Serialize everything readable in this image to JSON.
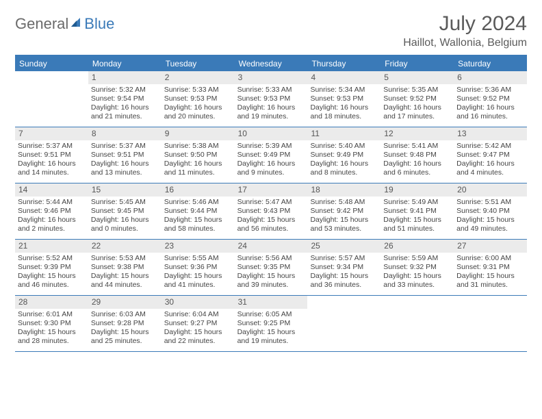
{
  "logo": {
    "general": "General",
    "blue": "Blue"
  },
  "title": "July 2024",
  "location": "Haillot, Wallonia, Belgium",
  "colors": {
    "accent": "#3a7ab8",
    "header_bg": "#3a7ab8",
    "daynum_bg": "#ebebeb",
    "text": "#444444",
    "title_text": "#5a5a5a"
  },
  "weekdays": [
    "Sunday",
    "Monday",
    "Tuesday",
    "Wednesday",
    "Thursday",
    "Friday",
    "Saturday"
  ],
  "weeks": [
    [
      null,
      {
        "n": "1",
        "sr": "5:32 AM",
        "ss": "9:54 PM",
        "dl": "16 hours and 21 minutes."
      },
      {
        "n": "2",
        "sr": "5:33 AM",
        "ss": "9:53 PM",
        "dl": "16 hours and 20 minutes."
      },
      {
        "n": "3",
        "sr": "5:33 AM",
        "ss": "9:53 PM",
        "dl": "16 hours and 19 minutes."
      },
      {
        "n": "4",
        "sr": "5:34 AM",
        "ss": "9:53 PM",
        "dl": "16 hours and 18 minutes."
      },
      {
        "n": "5",
        "sr": "5:35 AM",
        "ss": "9:52 PM",
        "dl": "16 hours and 17 minutes."
      },
      {
        "n": "6",
        "sr": "5:36 AM",
        "ss": "9:52 PM",
        "dl": "16 hours and 16 minutes."
      }
    ],
    [
      {
        "n": "7",
        "sr": "5:37 AM",
        "ss": "9:51 PM",
        "dl": "16 hours and 14 minutes."
      },
      {
        "n": "8",
        "sr": "5:37 AM",
        "ss": "9:51 PM",
        "dl": "16 hours and 13 minutes."
      },
      {
        "n": "9",
        "sr": "5:38 AM",
        "ss": "9:50 PM",
        "dl": "16 hours and 11 minutes."
      },
      {
        "n": "10",
        "sr": "5:39 AM",
        "ss": "9:49 PM",
        "dl": "16 hours and 9 minutes."
      },
      {
        "n": "11",
        "sr": "5:40 AM",
        "ss": "9:49 PM",
        "dl": "16 hours and 8 minutes."
      },
      {
        "n": "12",
        "sr": "5:41 AM",
        "ss": "9:48 PM",
        "dl": "16 hours and 6 minutes."
      },
      {
        "n": "13",
        "sr": "5:42 AM",
        "ss": "9:47 PM",
        "dl": "16 hours and 4 minutes."
      }
    ],
    [
      {
        "n": "14",
        "sr": "5:44 AM",
        "ss": "9:46 PM",
        "dl": "16 hours and 2 minutes."
      },
      {
        "n": "15",
        "sr": "5:45 AM",
        "ss": "9:45 PM",
        "dl": "16 hours and 0 minutes."
      },
      {
        "n": "16",
        "sr": "5:46 AM",
        "ss": "9:44 PM",
        "dl": "15 hours and 58 minutes."
      },
      {
        "n": "17",
        "sr": "5:47 AM",
        "ss": "9:43 PM",
        "dl": "15 hours and 56 minutes."
      },
      {
        "n": "18",
        "sr": "5:48 AM",
        "ss": "9:42 PM",
        "dl": "15 hours and 53 minutes."
      },
      {
        "n": "19",
        "sr": "5:49 AM",
        "ss": "9:41 PM",
        "dl": "15 hours and 51 minutes."
      },
      {
        "n": "20",
        "sr": "5:51 AM",
        "ss": "9:40 PM",
        "dl": "15 hours and 49 minutes."
      }
    ],
    [
      {
        "n": "21",
        "sr": "5:52 AM",
        "ss": "9:39 PM",
        "dl": "15 hours and 46 minutes."
      },
      {
        "n": "22",
        "sr": "5:53 AM",
        "ss": "9:38 PM",
        "dl": "15 hours and 44 minutes."
      },
      {
        "n": "23",
        "sr": "5:55 AM",
        "ss": "9:36 PM",
        "dl": "15 hours and 41 minutes."
      },
      {
        "n": "24",
        "sr": "5:56 AM",
        "ss": "9:35 PM",
        "dl": "15 hours and 39 minutes."
      },
      {
        "n": "25",
        "sr": "5:57 AM",
        "ss": "9:34 PM",
        "dl": "15 hours and 36 minutes."
      },
      {
        "n": "26",
        "sr": "5:59 AM",
        "ss": "9:32 PM",
        "dl": "15 hours and 33 minutes."
      },
      {
        "n": "27",
        "sr": "6:00 AM",
        "ss": "9:31 PM",
        "dl": "15 hours and 31 minutes."
      }
    ],
    [
      {
        "n": "28",
        "sr": "6:01 AM",
        "ss": "9:30 PM",
        "dl": "15 hours and 28 minutes."
      },
      {
        "n": "29",
        "sr": "6:03 AM",
        "ss": "9:28 PM",
        "dl": "15 hours and 25 minutes."
      },
      {
        "n": "30",
        "sr": "6:04 AM",
        "ss": "9:27 PM",
        "dl": "15 hours and 22 minutes."
      },
      {
        "n": "31",
        "sr": "6:05 AM",
        "ss": "9:25 PM",
        "dl": "15 hours and 19 minutes."
      },
      null,
      null,
      null
    ]
  ],
  "labels": {
    "sunrise": "Sunrise:",
    "sunset": "Sunset:",
    "daylight": "Daylight:"
  }
}
